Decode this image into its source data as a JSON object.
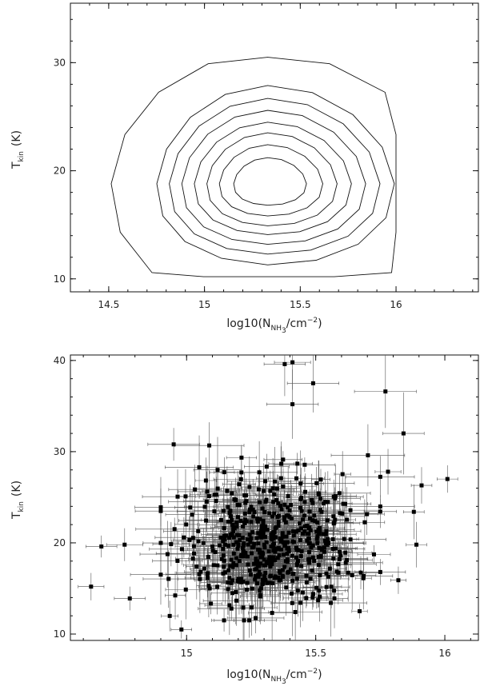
{
  "chart_data": [
    {
      "type": "contour",
      "xlabel": "log10(N",
      "xlabel_sub": "NH",
      "xlabel_sub2": "3",
      "xlabel_tail": "/cm",
      "xlabel_sup": "−2",
      "xlabel_end": ")",
      "ylabel": "T",
      "ylabel_sub": "kin",
      "ylabel_unit": "(K)",
      "xlim": [
        14.3,
        16.43
      ],
      "ylim": [
        8.8,
        35.5
      ],
      "xticks": [
        14.5,
        15,
        15.5,
        16
      ],
      "xtick_labels": [
        "14.5",
        "15",
        "15.5",
        "16"
      ],
      "yticks": [
        10,
        20,
        30
      ],
      "ytick_labels": [
        "10",
        "20",
        "30"
      ],
      "center": [
        15.33,
        18.8
      ],
      "levels": [
        {
          "rx": 0.19,
          "ry": 2.2,
          "shape": "inner"
        },
        {
          "rx": 0.27,
          "ry": 3.3
        },
        {
          "rx": 0.34,
          "ry": 4.3
        },
        {
          "rx": 0.41,
          "ry": 5.2
        },
        {
          "rx": 0.48,
          "ry": 6.2
        },
        {
          "rx": 0.55,
          "ry": 7.2
        },
        {
          "rx": 0.62,
          "ry": 8.3
        },
        {
          "rx": 0.86,
          "ry": 11.8,
          "shape": "outer"
        }
      ]
    },
    {
      "type": "scatter",
      "xlabel": "log10(N",
      "xlabel_sub": "NH",
      "xlabel_sub2": "3",
      "xlabel_tail": "/cm",
      "xlabel_sup": "−2",
      "xlabel_end": ")",
      "ylabel": "T",
      "ylabel_sub": "kin",
      "ylabel_unit": "(K)",
      "xlim": [
        14.55,
        16.13
      ],
      "ylim": [
        9.3,
        40.6
      ],
      "xticks": [
        15,
        15.5,
        16
      ],
      "xtick_labels": [
        "15",
        "15.5",
        "16"
      ],
      "yticks": [
        10,
        20,
        30,
        40
      ],
      "ytick_labels": [
        "10",
        "20",
        "30",
        "40"
      ],
      "error_bars": true,
      "n_points": 560,
      "distribution": {
        "x_mean": 15.32,
        "x_sd": 0.17,
        "y_mean": 19.0,
        "y_sd": 4.6
      },
      "notable_points": [
        {
          "x": 14.63,
          "y": 15.2,
          "xerr": 0.05,
          "yerr": 1.5
        },
        {
          "x": 14.67,
          "y": 19.6,
          "xerr": 0.06,
          "yerr": 1.2
        },
        {
          "x": 14.95,
          "y": 30.8,
          "xerr": 0.1,
          "yerr": 1.8
        },
        {
          "x": 15.38,
          "y": 39.6,
          "xerr": 0.08,
          "yerr": 3.5
        },
        {
          "x": 15.41,
          "y": 39.8,
          "xerr": 0.07,
          "yerr": 3.0
        },
        {
          "x": 15.41,
          "y": 35.2,
          "xerr": 0.1,
          "yerr": 3.8
        },
        {
          "x": 15.49,
          "y": 37.5,
          "xerr": 0.1,
          "yerr": 3.2
        },
        {
          "x": 15.77,
          "y": 36.6,
          "xerr": 0.12,
          "yerr": 4.0
        },
        {
          "x": 15.84,
          "y": 32.0,
          "xerr": 0.08,
          "yerr": 4.5
        },
        {
          "x": 15.78,
          "y": 27.8,
          "xerr": 0.05,
          "yerr": 2.5
        },
        {
          "x": 15.91,
          "y": 26.3,
          "xerr": 0.04,
          "yerr": 2.0
        },
        {
          "x": 16.01,
          "y": 27.0,
          "xerr": 0.04,
          "yerr": 1.5
        },
        {
          "x": 15.88,
          "y": 23.4,
          "xerr": 0.04,
          "yerr": 3.0
        },
        {
          "x": 15.89,
          "y": 19.8,
          "xerr": 0.04,
          "yerr": 2.5
        },
        {
          "x": 15.82,
          "y": 15.9,
          "xerr": 0.03,
          "yerr": 1.5
        },
        {
          "x": 14.98,
          "y": 10.5,
          "xerr": 0.04,
          "yerr": 1.0
        },
        {
          "x": 15.67,
          "y": 12.5,
          "xerr": 0.03,
          "yerr": 0.8
        },
        {
          "x": 14.76,
          "y": 19.8,
          "xerr": 0.07,
          "yerr": 1.8
        },
        {
          "x": 14.78,
          "y": 13.9,
          "xerr": 0.06,
          "yerr": 1.3
        }
      ]
    }
  ]
}
